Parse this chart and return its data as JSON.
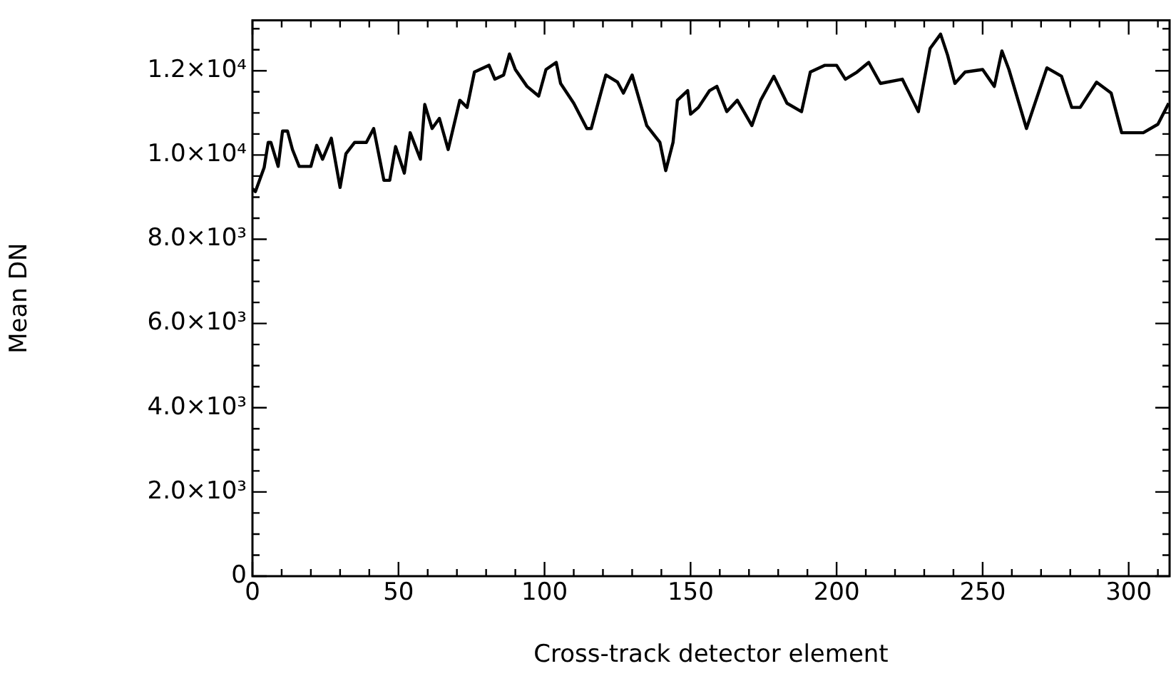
{
  "chart_data": {
    "type": "line",
    "xlabel": "Cross-track detector element",
    "ylabel": "Mean DN",
    "xlim": [
      0,
      314
    ],
    "ylim": [
      0,
      13200
    ],
    "grid": false,
    "legend": false,
    "marker": "none",
    "line_style": "solid",
    "xticks": [
      0,
      {
        "value": 10,
        "label": null
      },
      {
        "value": 20,
        "label": null
      },
      {
        "value": 30,
        "label": null
      },
      {
        "value": 40,
        "label": null
      },
      50,
      {
        "value": 60,
        "label": null
      },
      {
        "value": 70,
        "label": null
      },
      {
        "value": 80,
        "label": null
      },
      {
        "value": 90,
        "label": null
      },
      100,
      {
        "value": 110,
        "label": null
      },
      {
        "value": 120,
        "label": null
      },
      {
        "value": 130,
        "label": null
      },
      {
        "value": 140,
        "label": null
      },
      150,
      {
        "value": 160,
        "label": null
      },
      {
        "value": 170,
        "label": null
      },
      {
        "value": 180,
        "label": null
      },
      {
        "value": 190,
        "label": null
      },
      200,
      {
        "value": 210,
        "label": null
      },
      {
        "value": 220,
        "label": null
      },
      {
        "value": 230,
        "label": null
      },
      {
        "value": 240,
        "label": null
      },
      250,
      {
        "value": 260,
        "label": null
      },
      {
        "value": 270,
        "label": null
      },
      {
        "value": 280,
        "label": null
      },
      {
        "value": 290,
        "label": null
      },
      300,
      {
        "value": 310,
        "label": null
      }
    ],
    "yticks": [
      0,
      {
        "value": 500,
        "label": null
      },
      {
        "value": 1000,
        "label": null
      },
      {
        "value": 1500,
        "label": null
      },
      {
        "value": 2000,
        "label": "2.0×10³"
      },
      {
        "value": 2500,
        "label": null
      },
      {
        "value": 3000,
        "label": null
      },
      {
        "value": 3500,
        "label": null
      },
      {
        "value": 4000,
        "label": "4.0×10³"
      },
      {
        "value": 4500,
        "label": null
      },
      {
        "value": 5000,
        "label": null
      },
      {
        "value": 5500,
        "label": null
      },
      {
        "value": 6000,
        "label": "6.0×10³"
      },
      {
        "value": 6500,
        "label": null
      },
      {
        "value": 7000,
        "label": null
      },
      {
        "value": 7500,
        "label": null
      },
      {
        "value": 8000,
        "label": "8.0×10³"
      },
      {
        "value": 8500,
        "label": null
      },
      {
        "value": 9000,
        "label": null
      },
      {
        "value": 9500,
        "label": null
      },
      {
        "value": 10000,
        "label": "1.0×10⁴"
      },
      {
        "value": 10500,
        "label": null
      },
      {
        "value": 11000,
        "label": null
      },
      {
        "value": 11500,
        "label": null
      },
      {
        "value": 12000,
        "label": "1.2×10⁴"
      },
      {
        "value": 12500,
        "label": null
      },
      {
        "value": 13000,
        "label": null
      }
    ],
    "x": [
      0,
      1,
      4,
      5.4,
      6.3,
      8.8,
      10.3,
      12,
      13.7,
      16,
      20,
      22,
      24,
      27,
      30,
      32,
      35,
      39,
      41.5,
      45,
      47,
      49,
      52,
      54,
      57.5,
      59,
      61.5,
      64,
      67,
      71,
      73.5,
      76,
      81,
      83,
      86,
      88,
      90,
      94,
      98,
      100.5,
      104,
      105.5,
      110,
      114.5,
      116,
      119.5,
      121,
      125,
      127,
      130,
      135,
      139.5,
      141.5,
      144,
      145.5,
      149,
      150,
      152.7,
      156.5,
      159,
      162.4,
      166,
      171,
      174,
      178.5,
      183,
      188,
      191,
      196,
      200,
      203,
      207,
      211,
      215,
      222.5,
      228,
      232,
      235.6,
      238,
      240.5,
      244,
      250,
      254,
      256.6,
      259,
      265,
      272,
      277,
      280.5,
      283.4,
      289,
      294,
      297.6,
      305,
      310,
      313.7
    ],
    "series": [
      {
        "color": "#000000",
        "values": [
          9200,
          9130,
          9700,
          10300,
          10300,
          9730,
          10570,
          10570,
          10130,
          9730,
          9730,
          10230,
          9900,
          10400,
          9230,
          10030,
          10300,
          10300,
          10630,
          9400,
          9400,
          10200,
          9570,
          10530,
          9900,
          11200,
          10630,
          10870,
          10130,
          11300,
          11130,
          11970,
          12130,
          11800,
          11900,
          12400,
          12030,
          11630,
          11400,
          12030,
          12200,
          11700,
          11230,
          10630,
          10630,
          11530,
          11900,
          11730,
          11470,
          11900,
          10700,
          10300,
          9630,
          10300,
          11300,
          11530,
          10970,
          11130,
          11530,
          11630,
          11030,
          11300,
          10700,
          11300,
          11870,
          11230,
          11030,
          11970,
          12130,
          12130,
          11800,
          11970,
          12200,
          11700,
          11800,
          11030,
          12530,
          12870,
          12370,
          11700,
          11970,
          12030,
          11630,
          12470,
          12030,
          10630,
          12070,
          11870,
          11130,
          11130,
          11730,
          11470,
          10530,
          10530,
          10730,
          11230
        ]
      }
    ]
  }
}
